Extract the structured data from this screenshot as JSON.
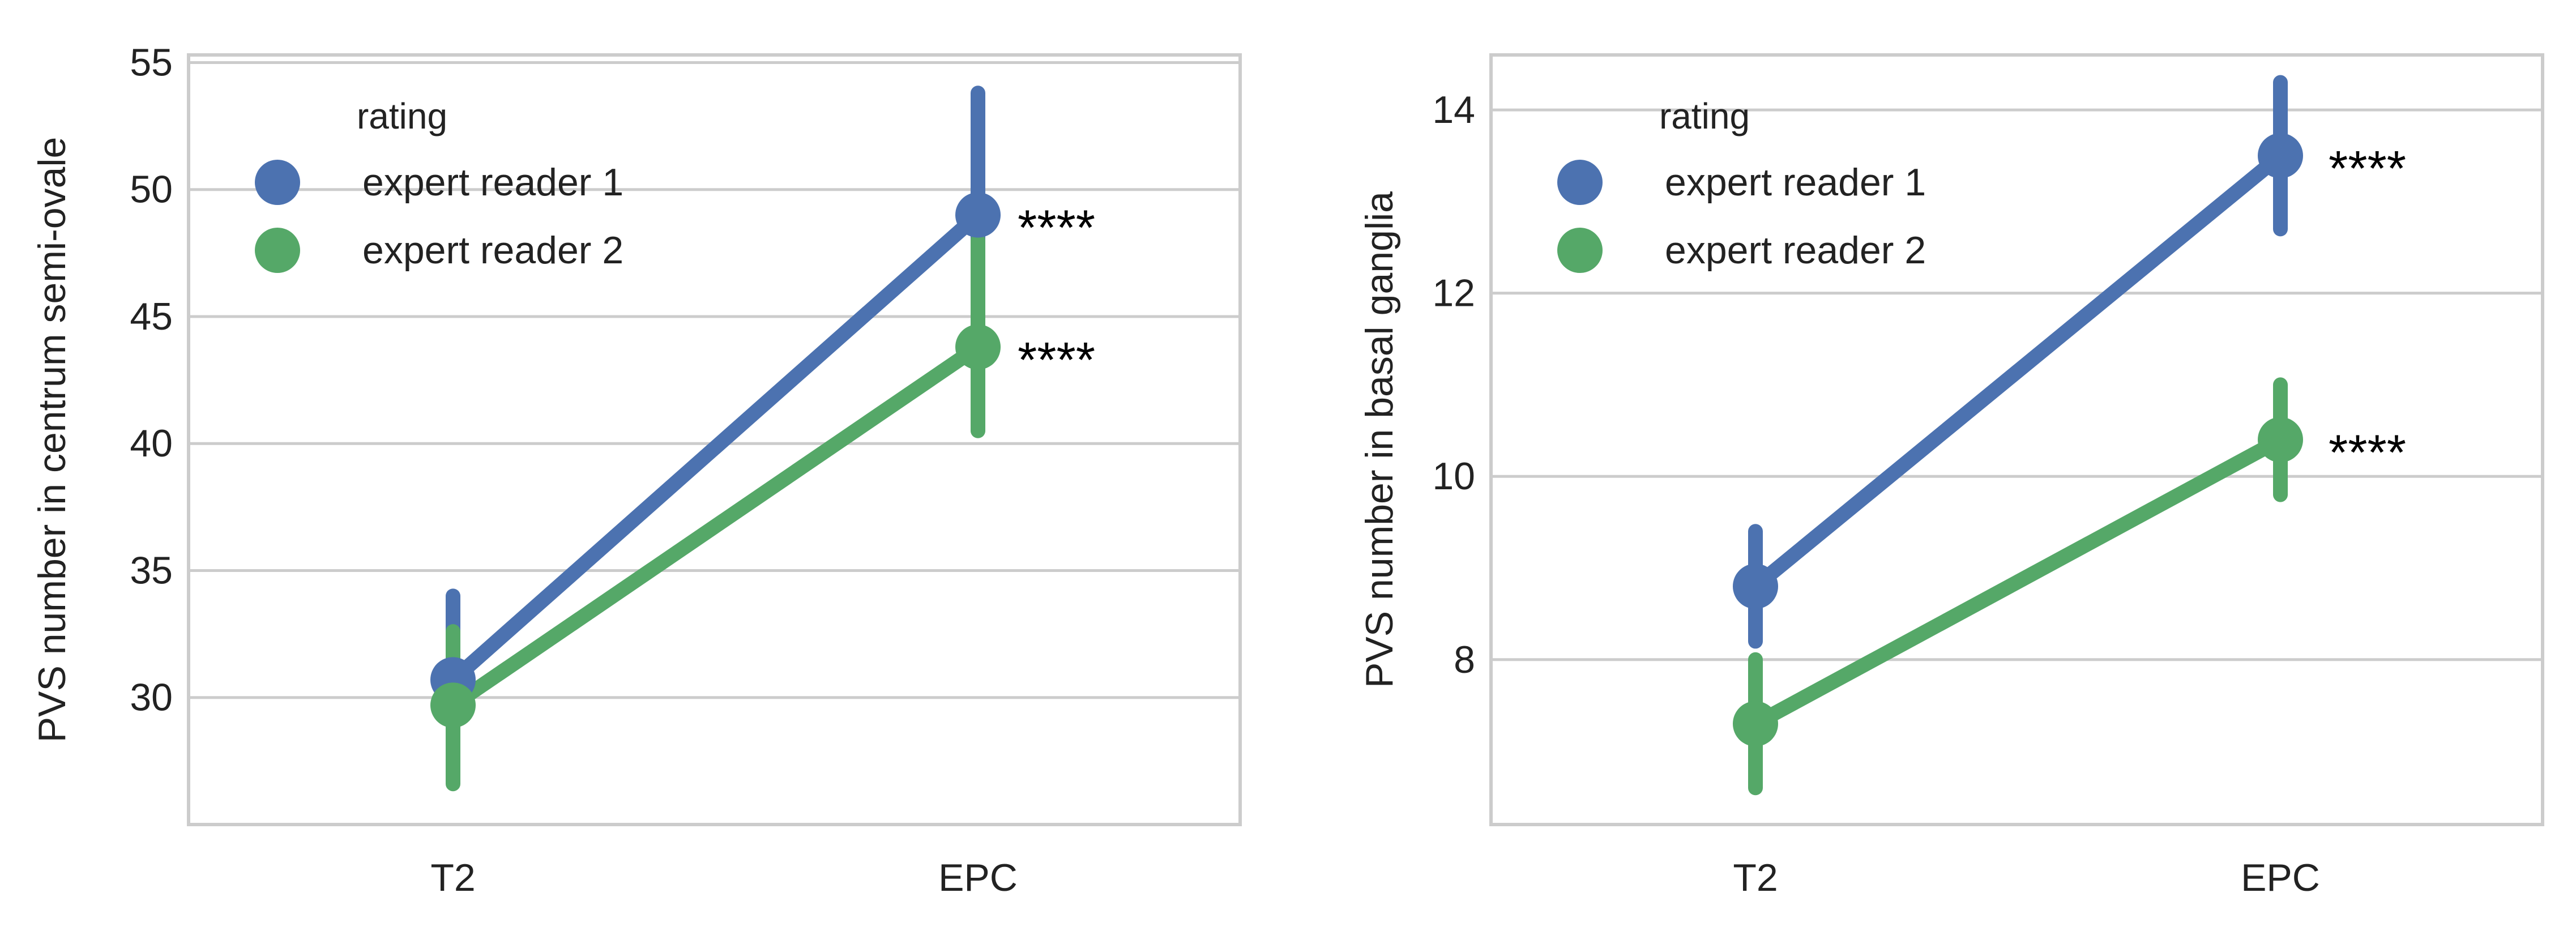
{
  "colors": {
    "series": [
      "#4c72b0",
      "#55a868"
    ],
    "grid": "#cccccc",
    "spine": "#cccccc",
    "text": "#222222",
    "sig": "#000000"
  },
  "chart_data": [
    {
      "type": "point",
      "categories": [
        "T2",
        "EPC"
      ],
      "xlabel": "",
      "ylabel": "PVS number in centrum semi-ovale",
      "ylim": [
        25,
        55.3
      ],
      "yticks": [
        30,
        35,
        40,
        45,
        50,
        55
      ],
      "grid": true,
      "legend": {
        "title": "rating",
        "position": "top-left"
      },
      "series": [
        {
          "name": "expert reader 1",
          "values": [
            30.7,
            49.0
          ],
          "ci_low": [
            27.2,
            44.1
          ],
          "ci_high": [
            34.0,
            53.8
          ]
        },
        {
          "name": "expert reader 2",
          "values": [
            29.7,
            43.8
          ],
          "ci_low": [
            26.6,
            40.5
          ],
          "ci_high": [
            32.6,
            48.0
          ]
        }
      ],
      "annotations": [
        {
          "category": "EPC",
          "series": 0,
          "text": "****"
        },
        {
          "category": "EPC",
          "series": 1,
          "text": "****"
        }
      ]
    },
    {
      "type": "point",
      "categories": [
        "T2",
        "EPC"
      ],
      "xlabel": "",
      "ylabel": "PVS number in basal ganglia",
      "ylim": [
        6.2,
        14.6
      ],
      "yticks": [
        8,
        10,
        12,
        14
      ],
      "grid": true,
      "legend": {
        "title": "rating",
        "position": "top-left"
      },
      "series": [
        {
          "name": "expert reader 1",
          "values": [
            8.8,
            13.5
          ],
          "ci_low": [
            8.2,
            12.7
          ],
          "ci_high": [
            9.4,
            14.3
          ]
        },
        {
          "name": "expert reader 2",
          "values": [
            7.3,
            10.4
          ],
          "ci_low": [
            6.6,
            9.8
          ],
          "ci_high": [
            8.0,
            11.0
          ]
        }
      ],
      "annotations": [
        {
          "category": "EPC",
          "series": 0,
          "text": "****"
        },
        {
          "category": "EPC",
          "series": 1,
          "text": "****"
        }
      ]
    }
  ]
}
